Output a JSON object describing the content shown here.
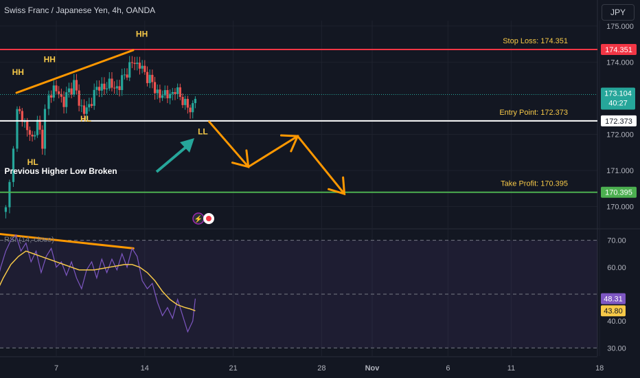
{
  "header": {
    "title": "Swiss Franc / Japanese Yen, 4h, OANDA",
    "currency": "JPY"
  },
  "colors": {
    "bg": "#131722",
    "up": "#26a69a",
    "down": "#ef5350",
    "rsi_line": "#7e57c2",
    "rsi_ma": "#f7c948",
    "stop": "#f23645",
    "target": "#4caf50",
    "entry": "#ffffff",
    "annotation": "#f7c948",
    "arrow": "#ff9800",
    "arrow_teal": "#26a69a"
  },
  "chart_data": [
    {
      "type": "candlestick",
      "title": "Swiss Franc / Japanese Yen, 4h, OANDA",
      "ylim": [
        169.4,
        175.15
      ],
      "y_ticks": [
        {
          "value": 175.0,
          "label": "175.000"
        },
        {
          "value": 174.0,
          "label": "174.000"
        },
        {
          "value": 172.0,
          "label": "172.000"
        },
        {
          "value": 171.0,
          "label": "171.000"
        },
        {
          "value": 170.0,
          "label": "170.000"
        }
      ],
      "x_ticks": [
        {
          "day": 7,
          "label": "7"
        },
        {
          "day": 14,
          "label": "14"
        },
        {
          "day": 21,
          "label": "21"
        },
        {
          "day": 28,
          "label": "28"
        },
        {
          "day": 32,
          "label": "Nov"
        },
        {
          "day": 38,
          "label": "6"
        },
        {
          "day": 43,
          "label": "11"
        },
        {
          "day": 50,
          "label": "18"
        }
      ],
      "close_points": [
        {
          "day": 3.0,
          "close": 169.9
        },
        {
          "day": 3.3,
          "close": 170.6
        },
        {
          "day": 3.6,
          "close": 171.8
        },
        {
          "day": 3.9,
          "close": 172.6
        },
        {
          "day": 4.3,
          "close": 172.5
        },
        {
          "day": 4.7,
          "close": 172.1
        },
        {
          "day": 5.1,
          "close": 171.9
        },
        {
          "day": 5.5,
          "close": 172.3
        },
        {
          "day": 5.9,
          "close": 171.8
        },
        {
          "day": 6.1,
          "close": 172.6
        },
        {
          "day": 6.4,
          "close": 173.0
        },
        {
          "day": 6.8,
          "close": 173.3
        },
        {
          "day": 7.2,
          "close": 173.1
        },
        {
          "day": 7.6,
          "close": 172.9
        },
        {
          "day": 8.0,
          "close": 173.2
        },
        {
          "day": 8.4,
          "close": 173.4
        },
        {
          "day": 8.8,
          "close": 172.9
        },
        {
          "day": 9.2,
          "close": 172.6
        },
        {
          "day": 9.6,
          "close": 172.8
        },
        {
          "day": 10.0,
          "close": 173.1
        },
        {
          "day": 10.4,
          "close": 173.4
        },
        {
          "day": 10.8,
          "close": 173.2
        },
        {
          "day": 11.2,
          "close": 173.5
        },
        {
          "day": 11.6,
          "close": 173.2
        },
        {
          "day": 12.0,
          "close": 173.4
        },
        {
          "day": 12.4,
          "close": 173.6
        },
        {
          "day": 12.8,
          "close": 173.9
        },
        {
          "day": 13.2,
          "close": 174.0
        },
        {
          "day": 13.6,
          "close": 173.9
        },
        {
          "day": 14.0,
          "close": 173.7
        },
        {
          "day": 14.4,
          "close": 173.5
        },
        {
          "day": 14.8,
          "close": 173.3
        },
        {
          "day": 15.2,
          "close": 173.0
        },
        {
          "day": 15.6,
          "close": 173.2
        },
        {
          "day": 16.0,
          "close": 173.0
        },
        {
          "day": 16.4,
          "close": 173.3
        },
        {
          "day": 16.8,
          "close": 173.0
        },
        {
          "day": 17.2,
          "close": 172.9
        },
        {
          "day": 17.6,
          "close": 172.6
        },
        {
          "day": 18.0,
          "close": 173.1
        }
      ],
      "levels": [
        {
          "name": "Stop Loss",
          "label": "Stop Loss: 174.351",
          "value": 174.351,
          "price_tag": "174.351"
        },
        {
          "name": "Entry Point",
          "label": "Entry Point: 172.373",
          "value": 172.373,
          "price_tag": "172.373"
        },
        {
          "name": "Take Profit",
          "label": "Take Profit: 170.395",
          "value": 170.395,
          "price_tag": "170.395"
        }
      ],
      "current_price": {
        "value": 173.104,
        "label": "173.104",
        "countdown": "40:27"
      },
      "annotations": [
        {
          "text": "HH",
          "day": 3.5,
          "price": 173.65
        },
        {
          "text": "HH",
          "day": 6.0,
          "price": 174.0
        },
        {
          "text": "HH",
          "day": 13.3,
          "price": 174.7
        },
        {
          "text": "HL",
          "day": 4.7,
          "price": 171.15
        },
        {
          "text": "HL",
          "day": 8.9,
          "price": 172.35
        },
        {
          "text": "LL",
          "day": 18.2,
          "price": 172.0
        },
        {
          "text": "Previous Higher Low Broken",
          "day": 2.9,
          "price": 170.9
        }
      ],
      "projection_path": [
        {
          "day": 19.1,
          "price": 172.35
        },
        {
          "day": 22.2,
          "price": 171.1
        },
        {
          "day": 26.1,
          "price": 171.95
        },
        {
          "day": 29.8,
          "price": 170.35
        }
      ]
    },
    {
      "type": "line",
      "title": "RSI (14, close)",
      "ylim": [
        27,
        74
      ],
      "bands": [
        70,
        50,
        30
      ],
      "y_ticks": [
        {
          "value": 70,
          "label": "70.00"
        },
        {
          "value": 60,
          "label": "60.00"
        },
        {
          "value": 40,
          "label": "40.00"
        },
        {
          "value": 30,
          "label": "30.00"
        }
      ],
      "series": [
        {
          "name": "RSI",
          "color": "#7e57c2",
          "current": "48.31",
          "points": [
            {
              "day": 2.2,
              "value": 52
            },
            {
              "day": 2.6,
              "value": 60
            },
            {
              "day": 3.0,
              "value": 66
            },
            {
              "day": 3.4,
              "value": 70
            },
            {
              "day": 3.8,
              "value": 72
            },
            {
              "day": 4.2,
              "value": 66
            },
            {
              "day": 4.6,
              "value": 69
            },
            {
              "day": 5.0,
              "value": 62
            },
            {
              "day": 5.4,
              "value": 66
            },
            {
              "day": 5.8,
              "value": 58
            },
            {
              "day": 6.2,
              "value": 64
            },
            {
              "day": 6.6,
              "value": 67
            },
            {
              "day": 7.0,
              "value": 60
            },
            {
              "day": 7.4,
              "value": 62
            },
            {
              "day": 7.8,
              "value": 57
            },
            {
              "day": 8.2,
              "value": 62
            },
            {
              "day": 8.6,
              "value": 56
            },
            {
              "day": 9.0,
              "value": 52
            },
            {
              "day": 9.4,
              "value": 59
            },
            {
              "day": 9.8,
              "value": 62
            },
            {
              "day": 10.2,
              "value": 56
            },
            {
              "day": 10.6,
              "value": 63
            },
            {
              "day": 11.0,
              "value": 58
            },
            {
              "day": 11.4,
              "value": 63
            },
            {
              "day": 11.8,
              "value": 59
            },
            {
              "day": 12.2,
              "value": 65
            },
            {
              "day": 12.6,
              "value": 60
            },
            {
              "day": 13.0,
              "value": 67
            },
            {
              "day": 13.4,
              "value": 64
            },
            {
              "day": 13.8,
              "value": 55
            },
            {
              "day": 14.2,
              "value": 52
            },
            {
              "day": 14.6,
              "value": 54
            },
            {
              "day": 15.0,
              "value": 47
            },
            {
              "day": 15.4,
              "value": 42
            },
            {
              "day": 15.8,
              "value": 45
            },
            {
              "day": 16.2,
              "value": 41
            },
            {
              "day": 16.6,
              "value": 48
            },
            {
              "day": 17.0,
              "value": 42
            },
            {
              "day": 17.4,
              "value": 36
            },
            {
              "day": 17.8,
              "value": 40
            },
            {
              "day": 18.0,
              "value": 48.31
            }
          ]
        },
        {
          "name": "RSI-based MA",
          "color": "#f7c948",
          "current": "43.80",
          "points": [
            {
              "day": 2.2,
              "value": 50
            },
            {
              "day": 2.8,
              "value": 56
            },
            {
              "day": 3.4,
              "value": 61
            },
            {
              "day": 4.0,
              "value": 64
            },
            {
              "day": 4.6,
              "value": 66
            },
            {
              "day": 5.2,
              "value": 65
            },
            {
              "day": 5.8,
              "value": 64
            },
            {
              "day": 6.4,
              "value": 63
            },
            {
              "day": 7.0,
              "value": 62
            },
            {
              "day": 7.6,
              "value": 61
            },
            {
              "day": 8.2,
              "value": 60
            },
            {
              "day": 8.8,
              "value": 59
            },
            {
              "day": 9.4,
              "value": 59
            },
            {
              "day": 10.0,
              "value": 59
            },
            {
              "day": 10.6,
              "value": 59.5
            },
            {
              "day": 11.2,
              "value": 60
            },
            {
              "day": 11.8,
              "value": 60.5
            },
            {
              "day": 12.4,
              "value": 61
            },
            {
              "day": 13.0,
              "value": 61
            },
            {
              "day": 13.6,
              "value": 60
            },
            {
              "day": 14.2,
              "value": 58
            },
            {
              "day": 14.8,
              "value": 55
            },
            {
              "day": 15.4,
              "value": 51
            },
            {
              "day": 16.0,
              "value": 48
            },
            {
              "day": 16.6,
              "value": 46
            },
            {
              "day": 17.2,
              "value": 45
            },
            {
              "day": 17.6,
              "value": 44.5
            },
            {
              "day": 18.0,
              "value": 43.8
            }
          ]
        }
      ],
      "divergence_line": [
        {
          "day": 2.2,
          "value": 72.5
        },
        {
          "day": 13.1,
          "value": 67
        }
      ]
    }
  ]
}
